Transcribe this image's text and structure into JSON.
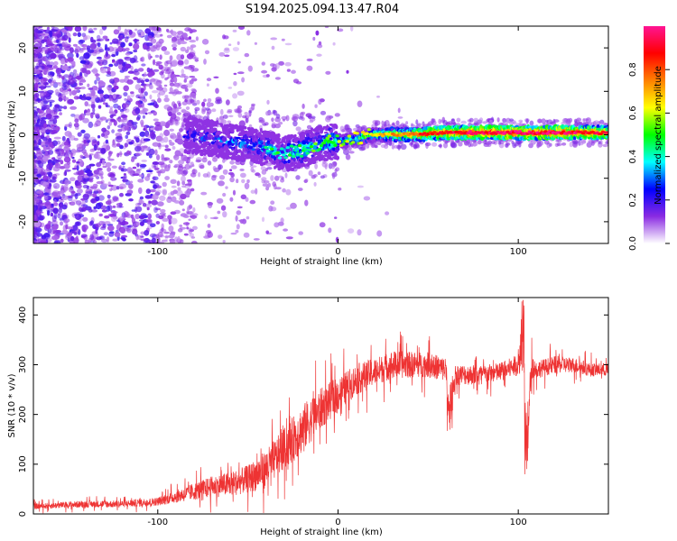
{
  "title": "S194.2025.094.13.47.R04",
  "chart_data": [
    {
      "type": "heatmap",
      "xlabel": "Height of straight line (km)",
      "ylabel": "Frequency (Hz)",
      "xlim": [
        -169,
        150
      ],
      "ylim": [
        -25,
        25
      ],
      "xticks": [
        -100,
        0,
        100
      ],
      "yticks": [
        -20,
        -10,
        0,
        10,
        20
      ],
      "grid": false,
      "colorbar": {
        "label": "Normalized spectral amplitude",
        "range": [
          0,
          1
        ],
        "ticks": [
          "0.0",
          "0.2",
          "0.4",
          "0.6",
          "0.8"
        ],
        "colormap": [
          "#ffffff",
          "#8a2be2",
          "#0000ff",
          "#00ffff",
          "#00ff00",
          "#ffff00",
          "#ff8000",
          "#ff0000",
          "#ff1493"
        ]
      },
      "ridge": {
        "x": [
          -85,
          -60,
          -40,
          -30,
          -20,
          -10,
          0,
          10,
          20,
          40,
          60,
          80,
          100,
          120,
          150
        ],
        "freq": [
          0,
          -1.5,
          -3,
          -4.5,
          -3.5,
          -2,
          -1.5,
          -1,
          0,
          0,
          0.5,
          0.5,
          0.5,
          0.5,
          0.5
        ],
        "amplitude": [
          0.3,
          0.4,
          0.45,
          0.45,
          0.5,
          0.5,
          0.55,
          0.6,
          0.65,
          0.8,
          0.9,
          0.95,
          0.95,
          0.95,
          0.9
        ]
      }
    },
    {
      "type": "line",
      "xlabel": "Height of straight line (km)",
      "ylabel": "SNR (10 * v/v)",
      "xlim": [
        -169,
        150
      ],
      "ylim": [
        0,
        435
      ],
      "xticks": [
        -100,
        0,
        100
      ],
      "yticks": [
        0,
        100,
        200,
        300,
        400
      ],
      "grid": false,
      "series": [
        {
          "color": "#ee3333",
          "x": [
            -169,
            -140,
            -120,
            -100,
            -90,
            -80,
            -70,
            -60,
            -50,
            -40,
            -30,
            -20,
            -10,
            0,
            10,
            20,
            30,
            40,
            50,
            60,
            62,
            65,
            70,
            80,
            90,
            100,
            103,
            105,
            107,
            110,
            120,
            130,
            140,
            150
          ],
          "y": [
            15,
            20,
            20,
            25,
            35,
            45,
            55,
            60,
            70,
            90,
            130,
            170,
            210,
            240,
            270,
            285,
            300,
            300,
            300,
            290,
            200,
            280,
            280,
            280,
            285,
            300,
            330,
            120,
            300,
            290,
            300,
            300,
            290,
            290
          ],
          "spread": [
            8,
            10,
            10,
            12,
            18,
            25,
            30,
            35,
            40,
            55,
            60,
            70,
            60,
            50,
            45,
            40,
            40,
            38,
            36,
            35,
            30,
            30,
            30,
            28,
            28,
            30,
            60,
            60,
            40,
            25,
            25,
            22,
            20,
            18
          ]
        }
      ]
    }
  ]
}
